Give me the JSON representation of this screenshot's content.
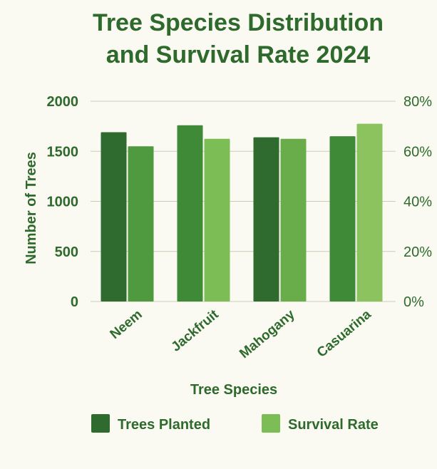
{
  "chart_data": {
    "type": "bar",
    "title_lines": [
      "Tree Species Distribution",
      "and Survival Rate 2024"
    ],
    "xlabel": "Tree Species",
    "ylabel": "Number of Trees",
    "categories": [
      "Neem",
      "Jackfruit",
      "Mahogany",
      "Casuarina"
    ],
    "ylim": [
      0,
      2000
    ],
    "y_ticks": [
      "0",
      "500",
      "1000",
      "1500",
      "2000"
    ],
    "y_right_lim": [
      0,
      80
    ],
    "y_right_ticks": [
      "0%",
      "20%",
      "40%",
      "60%",
      "80%"
    ],
    "grid": true,
    "legend_position": "bottom",
    "series": [
      {
        "name": "Trees Planted",
        "axis": "left",
        "values": [
          1690,
          1760,
          1640,
          1650
        ],
        "colors": [
          "#2f6b2f",
          "#3f8a36",
          "#2f6b2f",
          "#3f8a36"
        ]
      },
      {
        "name": "Survival Rate",
        "axis": "right",
        "values": [
          62,
          65,
          65,
          71
        ],
        "colors": [
          "#4f9a3f",
          "#7cbd55",
          "#69ad4b",
          "#8cc35e"
        ]
      }
    ],
    "legend_colors": [
      "#2f6b2f",
      "#7cbd55"
    ]
  }
}
